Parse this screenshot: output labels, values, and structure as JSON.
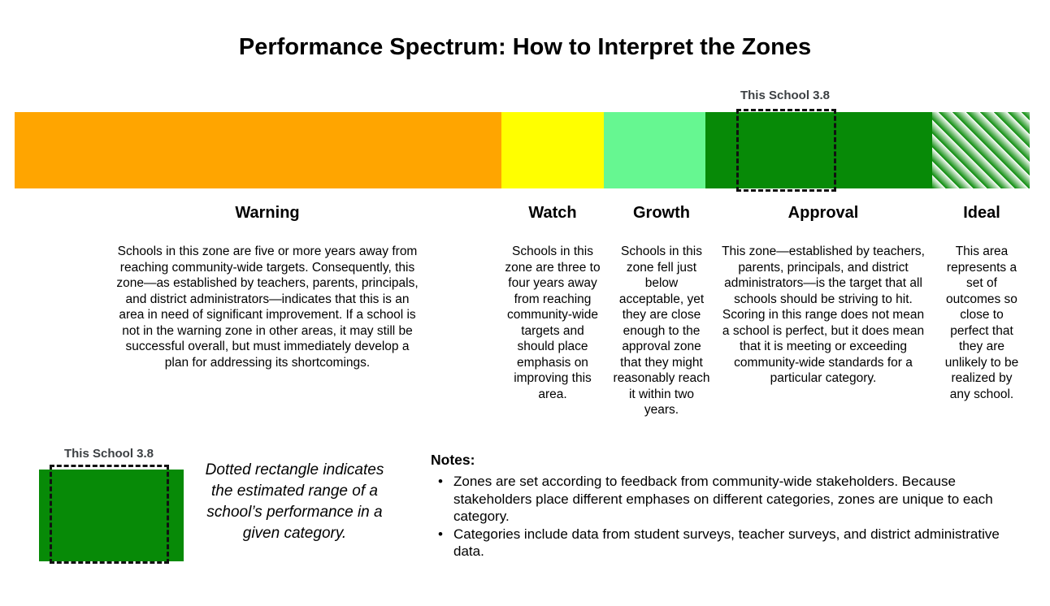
{
  "title": "Performance Spectrum: How to Interpret the Zones",
  "marker": {
    "label": "This School 3.8",
    "value": "3.8"
  },
  "zones": [
    {
      "name": "Warning",
      "color": "#FFA500",
      "description": "Schools in this zone are five or more years away from reaching community-wide targets. Consequently, this zone—as established by teachers, parents, principals, and district administrators—indicates that this is an area in need of significant improvement. If a school is not in the warning zone in other areas, it may still be successful overall, but must immediately develop a plan for addressing its shortcomings."
    },
    {
      "name": "Watch",
      "color": "#FFFF00",
      "description": "Schools in this zone are three to four years away from reaching community-wide targets and should place emphasis on improving this area."
    },
    {
      "name": "Growth",
      "color": "#66F791",
      "description": "Schools in this zone fell just below acceptable, yet they are close enough to the approval zone that they might reasonably reach it within two years."
    },
    {
      "name": "Approval",
      "color": "#078A07",
      "description": "This zone—established by teachers, parents, principals, and district administrators—is the target that all schools should be striving to hit. Scoring in this range does not mean a school is perfect, but it does mean that it is meeting or exceeding community-wide standards for a particular category."
    },
    {
      "name": "Ideal",
      "color": "#078A07",
      "stripe_colors": [
        "#078A07",
        "#FFFFFF"
      ],
      "description": "This area represents a set of outcomes so close to perfect that they are unlikely to be realized by any school."
    }
  ],
  "legend": {
    "marker_label": "This School 3.8",
    "caption": "Dotted rectangle indicates the estimated range of a school’s performance in a given category."
  },
  "notes": {
    "heading": "Notes:",
    "items": [
      "Zones are set according to feedback from community-wide stakeholders. Because stakeholders place different emphases on different categories, zones are unique to each category.",
      "Categories include data from student surveys, teacher surveys, and district administrative data."
    ]
  }
}
